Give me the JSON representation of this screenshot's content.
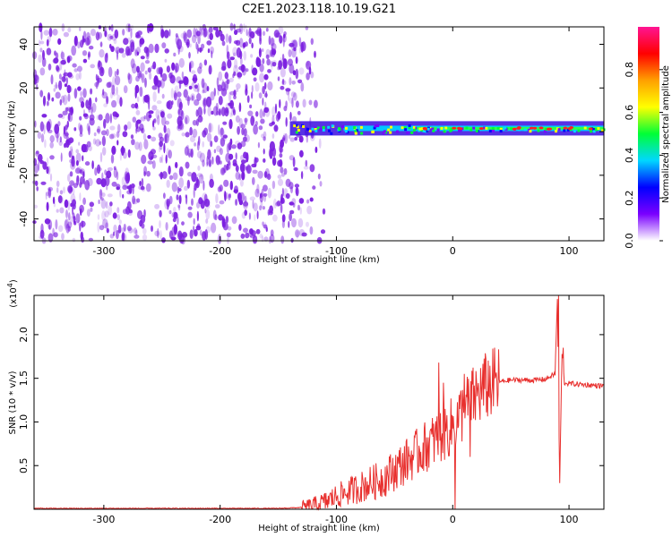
{
  "title": "C2E1.2023.118.10.19.G21",
  "colors": {
    "snr_line": "#e8302e",
    "noise_purple": "#7b1fe0",
    "colormap": [
      "#ffffff",
      "#7a00ff",
      "#0000ff",
      "#00d7ff",
      "#00ff36",
      "#ffff00",
      "#ffa000",
      "#ff0000",
      "#ff1493"
    ]
  },
  "chart_data": [
    {
      "type": "heatmap",
      "xlabel": "Height of straight line (km)",
      "ylabel": "Frequency (Hz)",
      "xlim": [
        -360,
        130
      ],
      "ylim": [
        -50,
        48
      ],
      "x_ticks": [
        -300,
        -200,
        -100,
        0,
        100
      ],
      "y_ticks": [
        -40,
        -20,
        0,
        20,
        40
      ],
      "x_tick_labels": [
        "-300",
        "-200",
        "-100",
        "0",
        "100"
      ],
      "y_tick_labels": [
        "-40",
        "-20",
        "0",
        "20",
        "40"
      ],
      "noise_region_x": [
        -360,
        -130
      ],
      "signal_band": {
        "x_start": -140,
        "x_end": 130,
        "center_freq": 1.5,
        "half_width": 3
      },
      "colorbar": {
        "label": "Normalized spectral amplitude",
        "range": [
          0,
          1
        ],
        "ticks": [
          0.0,
          0.2,
          0.4,
          0.6,
          0.8
        ],
        "tick_labels": [
          "0.0",
          "0.2",
          "0.4",
          "0.6",
          "0.8"
        ]
      },
      "grid": false
    },
    {
      "type": "line",
      "xlabel": "Height of straight line (km)",
      "ylabel": "SNR (10 * v/v)",
      "scale_label": "(x10^4)",
      "xlim": [
        -360,
        130
      ],
      "ylim": [
        0,
        2.45
      ],
      "x_ticks": [
        -300,
        -200,
        -100,
        0,
        100
      ],
      "y_ticks": [
        0.5,
        1.0,
        1.5,
        2.0
      ],
      "x_tick_labels": [
        "-300",
        "-200",
        "-100",
        "0",
        "100"
      ],
      "y_tick_labels": [
        "0.5",
        "1.0",
        "1.5",
        "2.0"
      ],
      "series": [
        {
          "x": [
            -360,
            -300,
            -250,
            -200,
            -150,
            -130,
            -120,
            -110,
            -100,
            -90,
            -80,
            -70,
            -60,
            -50,
            -40,
            -30,
            -20,
            -10,
            -5,
            0,
            5,
            10,
            20,
            30,
            40,
            50,
            60,
            70,
            80,
            88,
            90,
            92,
            94,
            96,
            100,
            110,
            120,
            130
          ],
          "y": [
            0.01,
            0.01,
            0.01,
            0.01,
            0.01,
            0.02,
            0.04,
            0.08,
            0.15,
            0.2,
            0.25,
            0.3,
            0.35,
            0.45,
            0.55,
            0.65,
            0.75,
            0.85,
            0.9,
            0.95,
            1.05,
            1.15,
            1.3,
            1.42,
            1.46,
            1.48,
            1.48,
            1.48,
            1.49,
            1.55,
            2.4,
            0.3,
            1.8,
            1.45,
            1.44,
            1.43,
            1.42,
            1.41
          ],
          "spikes": [
            {
              "x": -12,
              "y": 1.68
            },
            {
              "x": -8,
              "y": 1.45
            },
            {
              "x": 2,
              "y": 0.0
            },
            {
              "x": 10,
              "y": 1.55
            },
            {
              "x": 15,
              "y": 0.6
            },
            {
              "x": 91,
              "y": 2.45
            },
            {
              "x": 92,
              "y": 0.3
            },
            {
              "x": 95,
              "y": 1.85
            }
          ]
        }
      ],
      "grid": false
    }
  ]
}
